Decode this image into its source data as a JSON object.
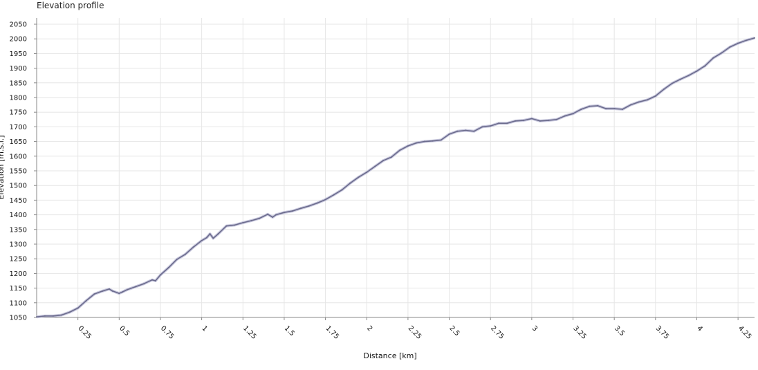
{
  "chart_data": {
    "type": "line",
    "title": "Elevation profile",
    "xlabel": "Distance [km]",
    "ylabel": "Elevation [m.s.l.]",
    "xlim": [
      0,
      4.35
    ],
    "ylim": [
      1050,
      2060
    ],
    "grid": true,
    "x_ticks": [
      {
        "value": 0.25,
        "label": "0.25"
      },
      {
        "value": 0.5,
        "label": "0.5"
      },
      {
        "value": 0.75,
        "label": "0.75"
      },
      {
        "value": 1,
        "label": "1"
      },
      {
        "value": 1.25,
        "label": "1.25"
      },
      {
        "value": 1.5,
        "label": "1.5"
      },
      {
        "value": 1.75,
        "label": "1.75"
      },
      {
        "value": 2,
        "label": "2"
      },
      {
        "value": 2.25,
        "label": "2.25"
      },
      {
        "value": 2.5,
        "label": "2.5"
      },
      {
        "value": 2.75,
        "label": "2.75"
      },
      {
        "value": 3,
        "label": "3"
      },
      {
        "value": 3.25,
        "label": "3.25"
      },
      {
        "value": 3.5,
        "label": "3.5"
      },
      {
        "value": 3.75,
        "label": "3.75"
      },
      {
        "value": 4,
        "label": "4"
      },
      {
        "value": 4.25,
        "label": "4.25"
      }
    ],
    "y_ticks": [
      {
        "value": 1050,
        "label": "1050"
      },
      {
        "value": 1100,
        "label": "1100"
      },
      {
        "value": 1150,
        "label": "1150"
      },
      {
        "value": 1200,
        "label": "1200"
      },
      {
        "value": 1250,
        "label": "1250"
      },
      {
        "value": 1300,
        "label": "1300"
      },
      {
        "value": 1350,
        "label": "1350"
      },
      {
        "value": 1400,
        "label": "1400"
      },
      {
        "value": 1450,
        "label": "1450"
      },
      {
        "value": 1500,
        "label": "1500"
      },
      {
        "value": 1550,
        "label": "1550"
      },
      {
        "value": 1600,
        "label": "1600"
      },
      {
        "value": 1650,
        "label": "1650"
      },
      {
        "value": 1700,
        "label": "1700"
      },
      {
        "value": 1750,
        "label": "1750"
      },
      {
        "value": 1800,
        "label": "1800"
      },
      {
        "value": 1850,
        "label": "1850"
      },
      {
        "value": 1900,
        "label": "1900"
      },
      {
        "value": 1950,
        "label": "1950"
      },
      {
        "value": 2000,
        "label": "2000"
      },
      {
        "value": 2050,
        "label": "2050"
      }
    ],
    "line_color": "#6b6b8c",
    "series": [
      {
        "x": [
          0,
          0.05,
          0.1,
          0.15,
          0.2,
          0.25,
          0.3,
          0.35,
          0.4,
          0.44,
          0.46,
          0.5,
          0.52,
          0.55,
          0.6,
          0.65,
          0.7,
          0.72,
          0.75,
          0.8,
          0.85,
          0.9,
          0.95,
          1.0,
          1.03,
          1.05,
          1.07,
          1.1,
          1.15,
          1.2,
          1.25,
          1.3,
          1.35,
          1.4,
          1.43,
          1.45,
          1.5,
          1.55,
          1.6,
          1.65,
          1.7,
          1.75,
          1.8,
          1.85,
          1.9,
          1.95,
          2.0,
          2.05,
          2.1,
          2.15,
          2.2,
          2.25,
          2.3,
          2.35,
          2.4,
          2.45,
          2.5,
          2.55,
          2.6,
          2.65,
          2.7,
          2.75,
          2.8,
          2.85,
          2.9,
          2.95,
          3.0,
          3.05,
          3.1,
          3.15,
          3.2,
          3.25,
          3.3,
          3.35,
          3.4,
          3.45,
          3.5,
          3.55,
          3.6,
          3.65,
          3.7,
          3.75,
          3.8,
          3.85,
          3.9,
          3.95,
          4.0,
          4.05,
          4.1,
          4.15,
          4.2,
          4.25,
          4.3,
          4.35
        ],
        "y": [
          1052,
          1055,
          1055,
          1058,
          1068,
          1082,
          1107,
          1130,
          1140,
          1147,
          1140,
          1132,
          1137,
          1145,
          1155,
          1165,
          1178,
          1175,
          1195,
          1220,
          1248,
          1265,
          1290,
          1312,
          1322,
          1335,
          1320,
          1335,
          1362,
          1365,
          1373,
          1380,
          1388,
          1402,
          1392,
          1400,
          1408,
          1413,
          1422,
          1430,
          1440,
          1452,
          1468,
          1485,
          1508,
          1528,
          1545,
          1565,
          1585,
          1597,
          1620,
          1635,
          1645,
          1650,
          1652,
          1655,
          1675,
          1685,
          1688,
          1685,
          1700,
          1703,
          1712,
          1712,
          1720,
          1722,
          1728,
          1720,
          1722,
          1725,
          1737,
          1745,
          1760,
          1770,
          1772,
          1762,
          1762,
          1760,
          1775,
          1785,
          1792,
          1805,
          1828,
          1848,
          1862,
          1875,
          1890,
          1908,
          1935,
          1952,
          1972,
          1985,
          1995,
          2003
        ]
      }
    ]
  }
}
